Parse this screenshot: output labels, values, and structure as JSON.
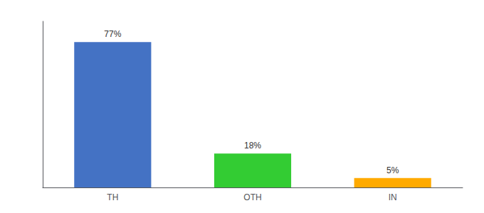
{
  "chart_data": {
    "type": "bar",
    "categories": [
      "TH",
      "OTH",
      "IN"
    ],
    "values": [
      77,
      18,
      5
    ],
    "value_labels": [
      "77%",
      "18%",
      "5%"
    ],
    "colors": [
      "#4472C4",
      "#33CC33",
      "#FFAA00"
    ],
    "ylim": [
      0,
      88
    ],
    "yticks": [],
    "grid": false,
    "data_labels": true,
    "tick_labels": "x"
  }
}
